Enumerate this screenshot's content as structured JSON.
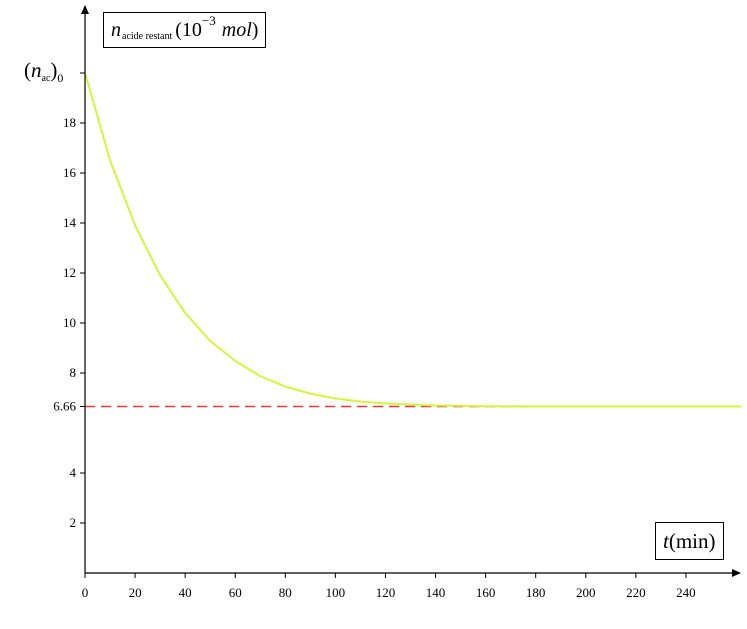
{
  "chart_data": {
    "type": "line",
    "title": "",
    "ylabel": {
      "symbol": "n",
      "subscript": "acide restant",
      "unit_prefix": "(10",
      "unit_exponent": "−3",
      "unit_name": "mol",
      "unit_suffix": ")"
    },
    "xlabel": {
      "symbol": "t",
      "unit": "(min)"
    },
    "xlim": [
      0,
      262
    ],
    "ylim": [
      0,
      22.2
    ],
    "x_ticks": [
      0,
      20,
      40,
      60,
      80,
      100,
      120,
      140,
      160,
      180,
      200,
      220,
      240
    ],
    "x_tick_labels": [
      "0",
      "20",
      "40",
      "60",
      "80",
      "100",
      "120",
      "140",
      "160",
      "180",
      "200",
      "220",
      "240"
    ],
    "y_ticks": [
      2,
      4,
      6.66,
      8,
      10,
      12,
      14,
      16,
      18
    ],
    "y_tick_labels": [
      "2",
      "4",
      "6.66",
      "8",
      "10",
      "12",
      "14",
      "16",
      "18"
    ],
    "y0_label": {
      "symbol": "n",
      "subscript": "ac",
      "index": "0"
    },
    "grid": false,
    "series": [
      {
        "style": "solid",
        "color": "#d4f540",
        "x": [
          0,
          10,
          20,
          30,
          40,
          50,
          60,
          70,
          80,
          90,
          100,
          110,
          120,
          130,
          140,
          150,
          160,
          180,
          200,
          220,
          240,
          262
        ],
        "y": [
          20.0,
          16.5,
          13.9,
          11.9,
          10.4,
          9.28,
          8.48,
          7.87,
          7.46,
          7.17,
          6.98,
          6.86,
          6.78,
          6.74,
          6.7,
          6.69,
          6.67,
          6.66,
          6.66,
          6.66,
          6.66,
          6.66
        ]
      },
      {
        "style": "dashed",
        "color": "#ee3333",
        "x": [
          0,
          262
        ],
        "y": [
          6.66,
          6.66
        ]
      }
    ]
  }
}
